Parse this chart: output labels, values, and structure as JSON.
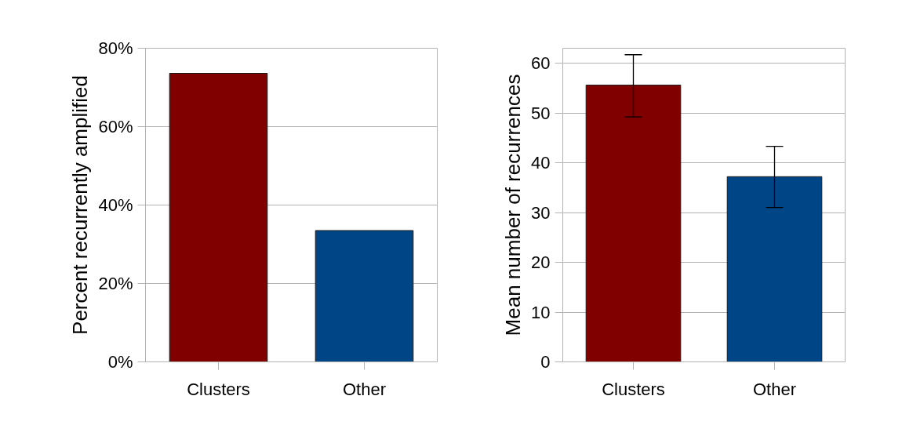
{
  "chart_data": [
    {
      "type": "bar",
      "ylabel": "Percent recurrently amplified",
      "categories": [
        "Clusters",
        "Other"
      ],
      "values": [
        73.6,
        33.5
      ],
      "colors": [
        "#800000",
        "#004586"
      ],
      "ylim": [
        0,
        80
      ],
      "yticks": [
        {
          "value": 0,
          "label": "0%"
        },
        {
          "value": 20,
          "label": "20%"
        },
        {
          "value": 40,
          "label": "40%"
        },
        {
          "value": 60,
          "label": "60%"
        },
        {
          "value": 80,
          "label": "80%"
        }
      ],
      "grid": "y"
    },
    {
      "type": "bar",
      "ylabel": "Mean number of recurrences",
      "categories": [
        "Clusters",
        "Other"
      ],
      "values": [
        55.6,
        37.2
      ],
      "colors": [
        "#800000",
        "#004586"
      ],
      "errors": [
        [
          49.2,
          61.7
        ],
        [
          31.0,
          43.3
        ]
      ],
      "ylim": [
        0,
        63
      ],
      "yticks": [
        0,
        10,
        20,
        30,
        40,
        50,
        60
      ],
      "grid": "y"
    }
  ]
}
